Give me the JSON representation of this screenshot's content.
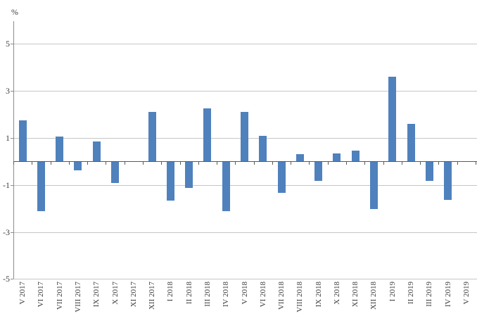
{
  "chart_data": {
    "type": "bar",
    "title": "",
    "xlabel": "",
    "ylabel": "%",
    "categories": [
      "V 2017",
      "VI 2017",
      "VII 2017",
      "VIII 2017",
      "IX 2017",
      "X 2017",
      "XI 2017",
      "XII 2017",
      "I 2018",
      "II 2018",
      "III 2018",
      "IV 2018",
      "V 2018",
      "VI 2018",
      "VII 2018",
      "VIII 2018",
      "IX 2018",
      "X 2018",
      "XI 2018",
      "XII 2018",
      "I 2019",
      "II 2019",
      "III 2019",
      "IV 2019",
      "V 2019"
    ],
    "values": [
      1.75,
      -2.1,
      1.05,
      -0.35,
      0.85,
      -0.9,
      0,
      2.1,
      -1.65,
      -1.1,
      2.25,
      -2.1,
      2.1,
      1.1,
      -1.3,
      0.3,
      -0.8,
      0.35,
      0.45,
      -2.0,
      3.6,
      1.6,
      -0.8,
      -1.6,
      0
    ],
    "ylim": [
      -5,
      6
    ],
    "yticks": [
      5,
      3,
      1,
      -1,
      -3,
      -5
    ],
    "grid": true,
    "legend": "none",
    "bar_color": "#4f81bd"
  },
  "colors": {
    "bar": "#4f81bd",
    "gridline": "#c6c6c6",
    "axis": "#8c8c8c",
    "zero_axis": "#595959",
    "text": "#404040",
    "background": "#ffffff"
  }
}
